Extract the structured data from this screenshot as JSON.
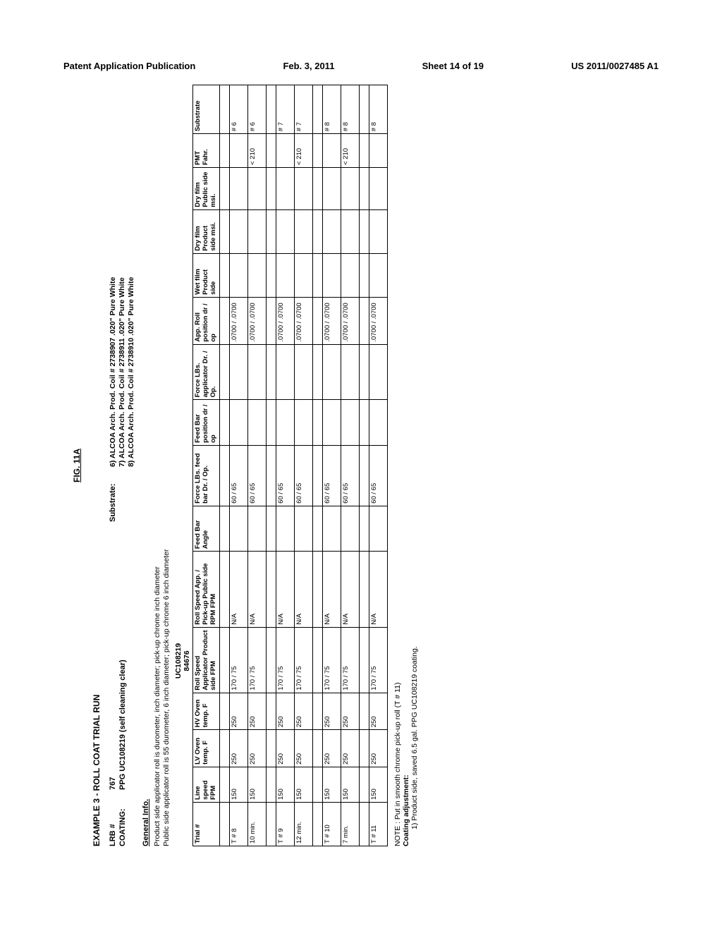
{
  "header": {
    "publication": "Patent Application Publication",
    "date": "Feb. 3, 2011",
    "sheet": "Sheet 14 of 19",
    "pubno": "US 2011/0027485 A1"
  },
  "fig": "FIG. 11A",
  "title": "EXAMPLE 3 - ROLL COAT TRIAL RUN",
  "meta": {
    "lrb_label": "LRB #",
    "lrb_val": "767",
    "coating_label": "COATING:",
    "coating_val": "PPG UC108219 (self cleaning clear)",
    "substrate_label": "Substrate:",
    "sub_lines": [
      "6) ALCOA Arch. Prod. Coil # 2738907 .020\" Pure White",
      "7) ALCOA Arch. Prod. Coil # 2738911 .020\" Pure White",
      "8) ALCOA Arch. Prod. Coil # 2738910 .020\" Pure White"
    ]
  },
  "gi": {
    "head": "General Info.",
    "lines": [
      "Product side applicator roll is durometer, inch diameter; pick-up chrome inch diameter",
      "Public side applicator roll is 55 durometer, 6 inch diameter; pick-up chrome 6 inch diameter"
    ]
  },
  "batches": {
    "a": "UC108219",
    "b": "84676"
  },
  "columns": [
    "Trial #",
    "Line speed FPM",
    "LV Oven temp. F",
    "HV Oven temp. F",
    "Roll Speed Applicator Product side FPM",
    "Roll Speed App. / Pick-up Public side RPM      FPM",
    "Feed Bar Angle",
    "Force LBs. feed bar Dr. / Op.",
    "Feed Bar position dr / op",
    "Force LBs. applicator Dr. / Op.",
    "App. Roll position dr / op",
    "Wet film Product side",
    "Dry film Product side msi.",
    "Dry film Public side msi.",
    "PMT Fahr.",
    "Substrate"
  ],
  "rows": [
    {
      "gap": true
    },
    {
      "cells": [
        "T # 8",
        "150",
        "250",
        "250",
        "170 / 75",
        "N/A",
        "",
        "60 / 65",
        "",
        "",
        ".0700 / .0700",
        "",
        "",
        "",
        "",
        "# 6"
      ]
    },
    {
      "cells": [
        "10 min.",
        "150",
        "250",
        "250",
        "170 / 75",
        "N/A",
        "",
        "60 / 65",
        "",
        "",
        ".0700 / .0700",
        "",
        "",
        "",
        "< 210",
        "# 6"
      ]
    },
    {
      "gap": true
    },
    {
      "cells": [
        "T # 9",
        "150",
        "250",
        "250",
        "170 / 75",
        "N/A",
        "",
        "60 / 65",
        "",
        "",
        ".0700 / .0700",
        "",
        "",
        "",
        "",
        "# 7"
      ]
    },
    {
      "cells": [
        "12 min.",
        "150",
        "250",
        "250",
        "170 / 75",
        "N/A",
        "",
        "60 / 65",
        "",
        "",
        ".0700 / .0700",
        "",
        "",
        "",
        "< 210",
        "# 7"
      ]
    },
    {
      "gap": true
    },
    {
      "cells": [
        "T # 10",
        "150",
        "250",
        "250",
        "170 / 75",
        "N/A",
        "",
        "60 / 65",
        "",
        "",
        ".0700 / .0700",
        "",
        "",
        "",
        "",
        "# 8"
      ]
    },
    {
      "cells": [
        "7 min.",
        "150",
        "250",
        "250",
        "170 / 75",
        "N/A",
        "",
        "60 / 65",
        "",
        "",
        ".0700 / .0700",
        "",
        "",
        "",
        "< 210",
        "# 8"
      ]
    },
    {
      "gap": true
    },
    {
      "cells": [
        "T # 11",
        "150",
        "250",
        "250",
        "170 / 75",
        "N/A",
        "",
        "60 / 65",
        "",
        "",
        ".0700 / .0700",
        "",
        "",
        "",
        "",
        "# 8"
      ]
    }
  ],
  "notes": {
    "n1": "NOTE : Put in smooth chrome pick-up roll (T # 11)",
    "n2": "Coating adjustment:",
    "n3": "1)  Product side, saved 6.5 gal. PPG UC108219 coating."
  }
}
